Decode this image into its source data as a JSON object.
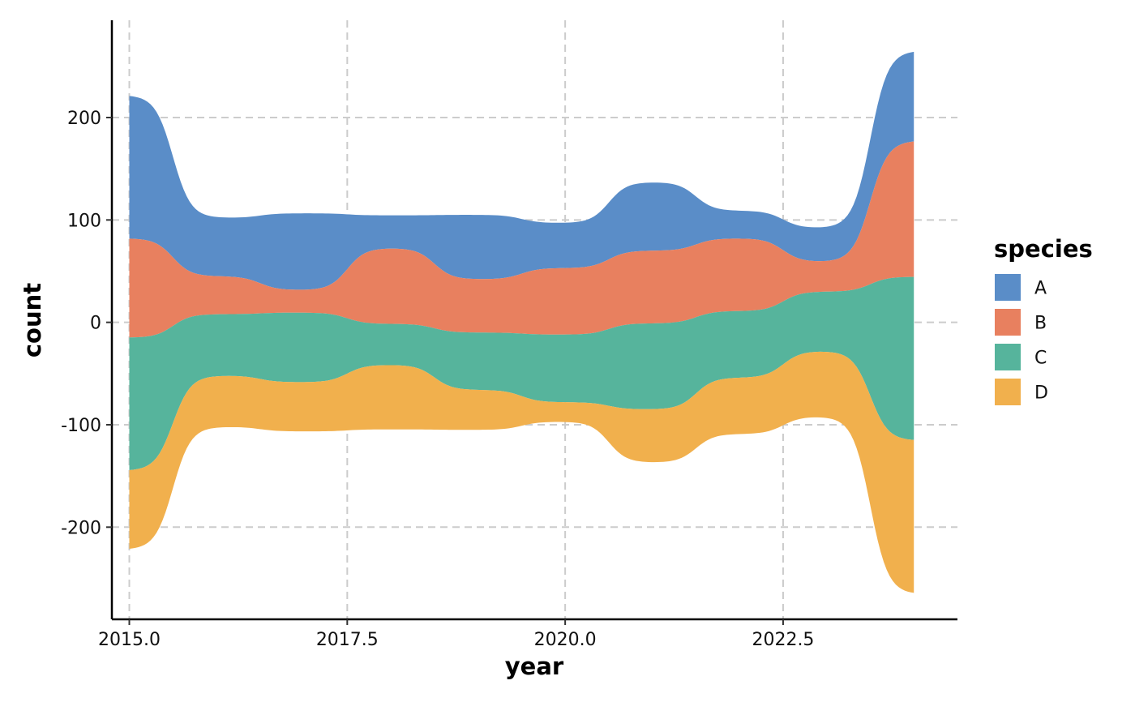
{
  "chart_data": {
    "type": "area",
    "subtype": "streamgraph",
    "title": "",
    "xlabel": "year",
    "ylabel": "count",
    "xlim": [
      2014.8,
      2024.5
    ],
    "ylim": [
      -290,
      295
    ],
    "x_ticks": [
      2015.0,
      2017.5,
      2020.0,
      2022.5
    ],
    "x_tick_labels": [
      "2015.0",
      "2017.5",
      "2020.0",
      "2022.5"
    ],
    "y_ticks": [
      -200,
      -100,
      0,
      100,
      200
    ],
    "y_tick_labels": [
      "-200",
      "-100",
      "0",
      "100",
      "200"
    ],
    "grid": true,
    "legend": {
      "title": "species",
      "position": "right"
    },
    "x": [
      2015,
      2016,
      2017,
      2018,
      2019,
      2020,
      2021,
      2022,
      2023,
      2024
    ],
    "series": [
      {
        "name": "A",
        "color": "#5a8dc8",
        "values": [
          140,
          57,
          75,
          32,
          63,
          44,
          67,
          27,
          33,
          88
        ]
      },
      {
        "name": "B",
        "color": "#e8805f",
        "values": [
          97,
          37,
          22,
          74,
          52,
          65,
          71,
          71,
          29,
          133
        ]
      },
      {
        "name": "C",
        "color": "#56b49c",
        "values": [
          130,
          60,
          68,
          40,
          56,
          66,
          84,
          65,
          58,
          160
        ]
      },
      {
        "name": "D",
        "color": "#f1b04d",
        "values": [
          77,
          50,
          48,
          63,
          39,
          19,
          52,
          55,
          64,
          150
        ]
      }
    ]
  }
}
